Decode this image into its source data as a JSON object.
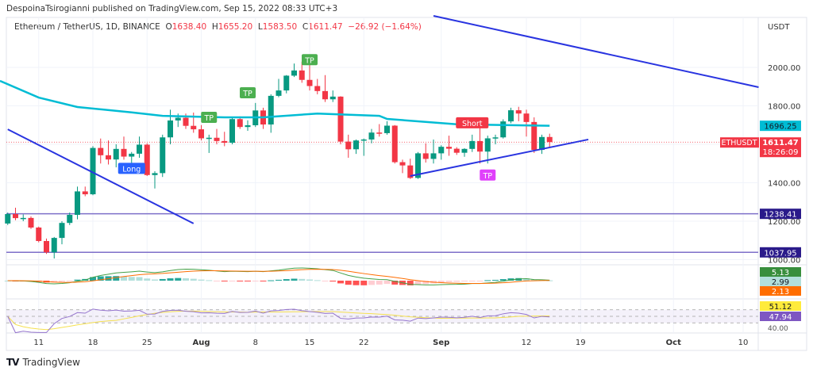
{
  "header": {
    "published": "DespoinaTsirogianni published on TradingView.com, Sep 15, 2022 08:33 UTC+3"
  },
  "legend": {
    "symbol": "Ethereum / TetherUS, 1D, BINANCE",
    "open_label": "O",
    "open": "1638.40",
    "high_label": "H",
    "high": "1655.20",
    "low_label": "L",
    "low": "1583.50",
    "close_label": "C",
    "close": "1611.47",
    "change": "−26.92 (−1.64%)"
  },
  "price_axis": {
    "currency": "USDT",
    "ticks": [
      "2000.00",
      "1800.00",
      "1400.00",
      "1200.00",
      "1000.00"
    ],
    "tick_values": [
      2000,
      1800,
      1400,
      1200,
      1000
    ],
    "ma_badge": "1696.25",
    "symbol_badge": "ETHUSDT",
    "last_price": "1611.47",
    "countdown": "18:26:09",
    "level_1": "1238.41",
    "level_2": "1037.95",
    "macd_values": [
      "5.13",
      "2.99",
      "2.13"
    ],
    "rsi_values": [
      "51.12",
      "47.94"
    ],
    "rsi_tick": "40.00"
  },
  "time_axis": [
    {
      "label": "11",
      "date": "2022-07-11"
    },
    {
      "label": "18",
      "date": "2022-07-18"
    },
    {
      "label": "25",
      "date": "2022-07-25"
    },
    {
      "label": "Aug",
      "date": "2022-08-01"
    },
    {
      "label": "8",
      "date": "2022-08-08"
    },
    {
      "label": "15",
      "date": "2022-08-15"
    },
    {
      "label": "22",
      "date": "2022-08-22"
    },
    {
      "label": "Sep",
      "date": "2022-09-01"
    },
    {
      "label": "12",
      "date": "2022-09-12"
    },
    {
      "label": "19",
      "date": "2022-09-19"
    },
    {
      "label": "Oct",
      "date": "2022-10-01"
    },
    {
      "label": "10",
      "date": "2022-10-10"
    }
  ],
  "colors": {
    "up": "#089981",
    "down": "#f23645",
    "ma": "#00bcd4",
    "trendline": "#2934e0",
    "level": "#3a2a9a",
    "tp": "#4caf50",
    "tp_pink": "#e040fb",
    "long": "#2962ff",
    "short": "#f23645",
    "macd": "#43a047",
    "signal": "#ff6d00",
    "rsi": "#9575cd",
    "rsi_ma": "#ffeb3b"
  },
  "chart_data": {
    "type": "candlestick",
    "start_date": "2022-07-07",
    "ohlc": [
      [
        1188,
        1245,
        1180,
        1237
      ],
      [
        1237,
        1270,
        1205,
        1216
      ],
      [
        1216,
        1235,
        1200,
        1217
      ],
      [
        1217,
        1225,
        1160,
        1167
      ],
      [
        1167,
        1172,
        1090,
        1097
      ],
      [
        1097,
        1110,
        1030,
        1038
      ],
      [
        1038,
        1118,
        1006,
        1113
      ],
      [
        1113,
        1200,
        1080,
        1191
      ],
      [
        1191,
        1245,
        1180,
        1233
      ],
      [
        1233,
        1380,
        1210,
        1355
      ],
      [
        1355,
        1380,
        1330,
        1340
      ],
      [
        1340,
        1590,
        1335,
        1581
      ],
      [
        1581,
        1630,
        1500,
        1543
      ],
      [
        1543,
        1620,
        1495,
        1521
      ],
      [
        1521,
        1600,
        1480,
        1576
      ],
      [
        1576,
        1640,
        1520,
        1536
      ],
      [
        1536,
        1560,
        1500,
        1551
      ],
      [
        1551,
        1640,
        1530,
        1598
      ],
      [
        1598,
        1605,
        1435,
        1440
      ],
      [
        1440,
        1460,
        1370,
        1450
      ],
      [
        1450,
        1650,
        1430,
        1636
      ],
      [
        1636,
        1780,
        1600,
        1724
      ],
      [
        1724,
        1760,
        1690,
        1738
      ],
      [
        1738,
        1760,
        1680,
        1696
      ],
      [
        1696,
        1765,
        1660,
        1678
      ],
      [
        1678,
        1700,
        1620,
        1631
      ],
      [
        1631,
        1650,
        1555,
        1634
      ],
      [
        1634,
        1680,
        1600,
        1617
      ],
      [
        1617,
        1665,
        1590,
        1608
      ],
      [
        1608,
        1740,
        1600,
        1731
      ],
      [
        1731,
        1745,
        1680,
        1690
      ],
      [
        1690,
        1725,
        1670,
        1699
      ],
      [
        1699,
        1815,
        1690,
        1776
      ],
      [
        1776,
        1790,
        1680,
        1703
      ],
      [
        1703,
        1860,
        1660,
        1852
      ],
      [
        1852,
        1940,
        1845,
        1880
      ],
      [
        1880,
        1960,
        1865,
        1957
      ],
      [
        1957,
        2020,
        1950,
        1984
      ],
      [
        1984,
        2030,
        1920,
        1935
      ],
      [
        1935,
        2015,
        1880,
        1903
      ],
      [
        1903,
        1940,
        1860,
        1877
      ],
      [
        1877,
        1960,
        1820,
        1834
      ],
      [
        1834,
        1880,
        1820,
        1848
      ],
      [
        1848,
        1850,
        1600,
        1614
      ],
      [
        1614,
        1650,
        1530,
        1574
      ],
      [
        1574,
        1625,
        1550,
        1620
      ],
      [
        1620,
        1630,
        1540,
        1625
      ],
      [
        1625,
        1680,
        1605,
        1661
      ],
      [
        1661,
        1705,
        1640,
        1658
      ],
      [
        1658,
        1720,
        1650,
        1697
      ],
      [
        1697,
        1700,
        1500,
        1507
      ],
      [
        1507,
        1520,
        1450,
        1490
      ],
      [
        1490,
        1525,
        1420,
        1425
      ],
      [
        1425,
        1560,
        1420,
        1553
      ],
      [
        1553,
        1605,
        1505,
        1524
      ],
      [
        1524,
        1625,
        1500,
        1553
      ],
      [
        1553,
        1595,
        1520,
        1587
      ],
      [
        1587,
        1645,
        1540,
        1577
      ],
      [
        1577,
        1585,
        1545,
        1556
      ],
      [
        1556,
        1580,
        1535,
        1576
      ],
      [
        1576,
        1650,
        1560,
        1617
      ],
      [
        1617,
        1690,
        1500,
        1562
      ],
      [
        1562,
        1645,
        1500,
        1631
      ],
      [
        1631,
        1650,
        1600,
        1636
      ],
      [
        1636,
        1730,
        1630,
        1719
      ],
      [
        1719,
        1790,
        1710,
        1777
      ],
      [
        1777,
        1795,
        1720,
        1760
      ],
      [
        1760,
        1780,
        1640,
        1716
      ],
      [
        1716,
        1740,
        1555,
        1571
      ],
      [
        1571,
        1650,
        1550,
        1638
      ],
      [
        1638,
        1655.2,
        1583.5,
        1611.47
      ]
    ],
    "moving_average": [
      [
        "2022-07-06",
        1930
      ],
      [
        "2022-07-11",
        1843
      ],
      [
        "2022-07-16",
        1794
      ],
      [
        "2022-07-23",
        1766
      ],
      [
        "2022-07-27",
        1748
      ],
      [
        "2022-08-04",
        1740
      ],
      [
        "2022-08-09",
        1740
      ],
      [
        "2022-08-16",
        1760
      ],
      [
        "2022-08-24",
        1748
      ],
      [
        "2022-08-25",
        1732
      ],
      [
        "2022-09-03",
        1704
      ],
      [
        "2022-09-15",
        1696.25
      ]
    ],
    "trendlines": [
      {
        "from": [
          "2022-07-07",
          1678
        ],
        "to": [
          "2022-07-31",
          1188
        ]
      },
      {
        "from": [
          "2022-08-31",
          2268
        ],
        "to": [
          "2022-10-12",
          1897
        ]
      },
      {
        "from": [
          "2022-08-28",
          1435
        ],
        "to": [
          "2022-09-20",
          1625
        ]
      }
    ],
    "horizontal_levels": [
      1238.41,
      1037.95
    ],
    "signals": [
      {
        "label": "TP",
        "date": "2022-08-02",
        "price": 1740,
        "kind": "tp"
      },
      {
        "label": "TP",
        "date": "2022-08-07",
        "price": 1868,
        "kind": "tp"
      },
      {
        "label": "TP",
        "date": "2022-08-15",
        "price": 2040,
        "kind": "tp"
      },
      {
        "label": "Long",
        "date": "2022-07-23",
        "price": 1475,
        "kind": "long"
      },
      {
        "label": "Short",
        "date": "2022-09-05",
        "price": 1712,
        "kind": "short"
      },
      {
        "label": "TP",
        "date": "2022-09-07",
        "price": 1440,
        "kind": "tp_pink"
      }
    ]
  },
  "footer": {
    "brand": "TradingView"
  }
}
